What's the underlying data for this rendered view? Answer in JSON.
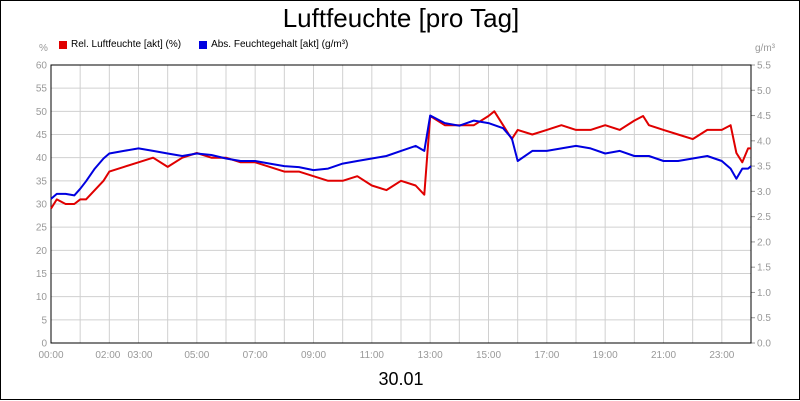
{
  "chart_data": {
    "type": "line",
    "title": "Luftfeuchte [pro Tag]",
    "xlabel": "30.01",
    "ylabel_left": "%",
    "ylabel_right": "g/m³",
    "ylim_left": [
      0,
      60
    ],
    "ylim_right": [
      0,
      5.5
    ],
    "xlim_hours": [
      0,
      24
    ],
    "grid": true,
    "legend_position": "top-left",
    "x_tick_labels": [
      "00:00",
      "02:00",
      "03:00",
      "05:00",
      "07:00",
      "09:00",
      "11:00",
      "13:00",
      "15:00",
      "17:00",
      "19:00",
      "21:00",
      "23:00"
    ],
    "left_tick_labels": [
      "0",
      "5",
      "10",
      "15",
      "20",
      "25",
      "30",
      "35",
      "40",
      "45",
      "50",
      "55",
      "60"
    ],
    "right_tick_labels": [
      "0.0",
      "0.5",
      "1.0",
      "1.5",
      "2.0",
      "2.5",
      "3.0",
      "3.5",
      "4.0",
      "4.5",
      "5.0",
      "5.5"
    ],
    "series": [
      {
        "name": "Rel. Luftfeuchte [akt] (%)",
        "color": "#e00000",
        "axis": "left",
        "x": [
          0,
          0.2,
          0.5,
          0.8,
          1.0,
          1.2,
          1.5,
          1.8,
          2.0,
          2.5,
          3.0,
          3.5,
          4.0,
          4.5,
          5.0,
          5.5,
          6.0,
          6.5,
          7.0,
          7.5,
          8.0,
          8.5,
          9.0,
          9.5,
          10.0,
          10.5,
          11.0,
          11.5,
          12.0,
          12.5,
          12.8,
          13.0,
          13.5,
          14.0,
          14.5,
          15.0,
          15.2,
          15.5,
          15.8,
          16.0,
          16.5,
          17.0,
          17.5,
          18.0,
          18.5,
          19.0,
          19.5,
          20.0,
          20.3,
          20.5,
          21.0,
          21.5,
          22.0,
          22.5,
          23.0,
          23.3,
          23.5,
          23.7,
          23.9,
          24.0
        ],
        "y": [
          29,
          31,
          30,
          30,
          31,
          31,
          33,
          35,
          37,
          38,
          39,
          40,
          38,
          40,
          41,
          40,
          40,
          39,
          39,
          38,
          37,
          37,
          36,
          35,
          35,
          36,
          34,
          33,
          35,
          34,
          32,
          49,
          47,
          47,
          47,
          49,
          50,
          47,
          44,
          46,
          45,
          46,
          47,
          46,
          46,
          47,
          46,
          48,
          49,
          47,
          46,
          45,
          44,
          46,
          46,
          47,
          41,
          39,
          42,
          42
        ]
      },
      {
        "name": "Abs. Feuchtegehalt [akt] (g/m³)",
        "color": "#0000e0",
        "axis": "right",
        "x": [
          0,
          0.2,
          0.5,
          0.8,
          1.0,
          1.2,
          1.5,
          1.8,
          2.0,
          2.5,
          3.0,
          3.5,
          4.0,
          4.5,
          5.0,
          5.5,
          6.0,
          6.5,
          7.0,
          7.5,
          8.0,
          8.5,
          9.0,
          9.5,
          10.0,
          10.5,
          11.0,
          11.5,
          12.0,
          12.5,
          12.8,
          13.0,
          13.5,
          14.0,
          14.5,
          15.0,
          15.5,
          15.8,
          16.0,
          16.5,
          17.0,
          17.5,
          18.0,
          18.5,
          19.0,
          19.5,
          20.0,
          20.5,
          21.0,
          21.5,
          22.0,
          22.5,
          23.0,
          23.3,
          23.5,
          23.7,
          23.9,
          24.0
        ],
        "y": [
          2.85,
          2.95,
          2.95,
          2.92,
          3.05,
          3.2,
          3.45,
          3.65,
          3.75,
          3.8,
          3.85,
          3.8,
          3.75,
          3.7,
          3.75,
          3.72,
          3.65,
          3.6,
          3.6,
          3.55,
          3.5,
          3.48,
          3.42,
          3.45,
          3.55,
          3.6,
          3.65,
          3.7,
          3.8,
          3.9,
          3.8,
          4.5,
          4.35,
          4.3,
          4.4,
          4.35,
          4.25,
          4.05,
          3.6,
          3.8,
          3.8,
          3.85,
          3.9,
          3.85,
          3.75,
          3.8,
          3.7,
          3.7,
          3.6,
          3.6,
          3.65,
          3.7,
          3.6,
          3.45,
          3.25,
          3.45,
          3.45,
          3.5
        ]
      }
    ]
  }
}
